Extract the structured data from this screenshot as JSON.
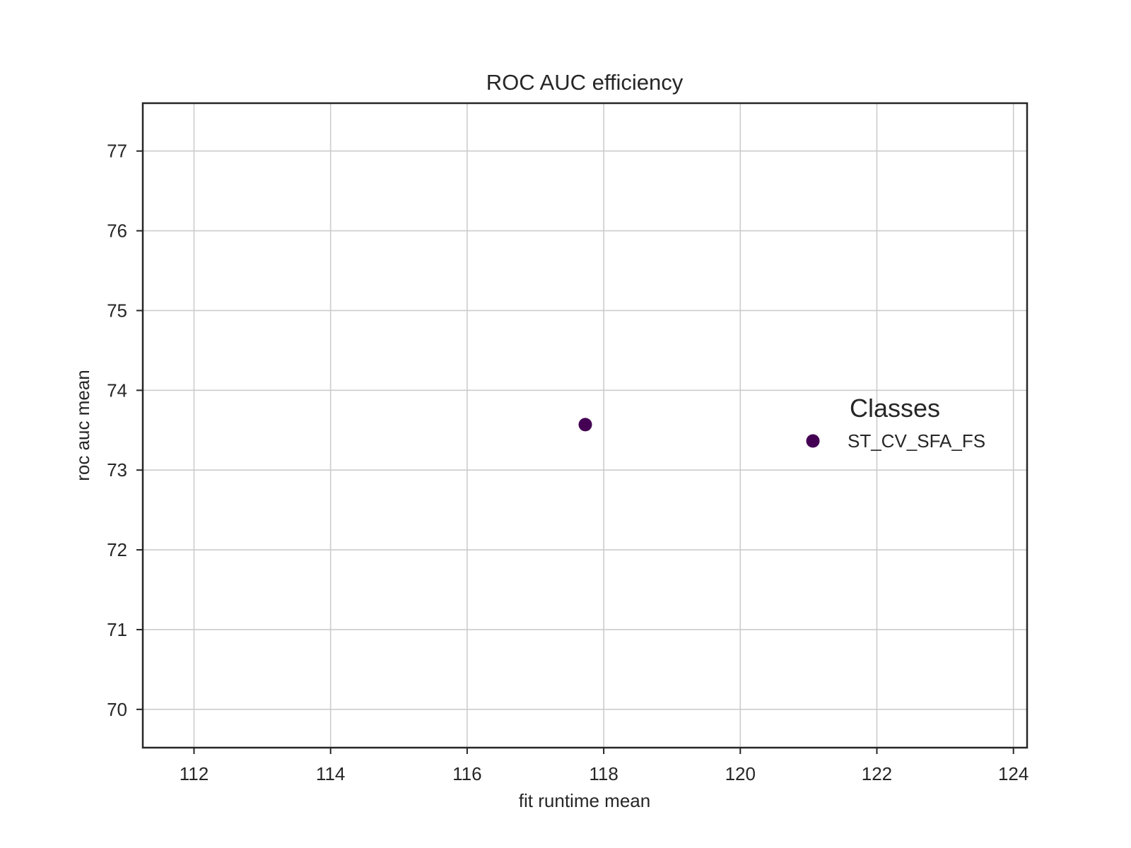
{
  "chart_data": {
    "type": "scatter",
    "title": "ROC AUC efficiency",
    "xlabel": "fit runtime mean",
    "ylabel": "roc auc mean",
    "xlim": [
      111.25,
      124.2
    ],
    "ylim": [
      69.52,
      77.6
    ],
    "x_ticks": [
      112,
      114,
      116,
      118,
      120,
      122,
      124
    ],
    "y_ticks": [
      70,
      71,
      72,
      73,
      74,
      75,
      76,
      77
    ],
    "grid": true,
    "legend": {
      "title": "Classes",
      "placement": "center-right"
    },
    "series": [
      {
        "name": "ST_CV_SFA_FS",
        "color": "#440154",
        "points": [
          {
            "x": 117.73,
            "y": 73.57
          }
        ]
      }
    ]
  }
}
